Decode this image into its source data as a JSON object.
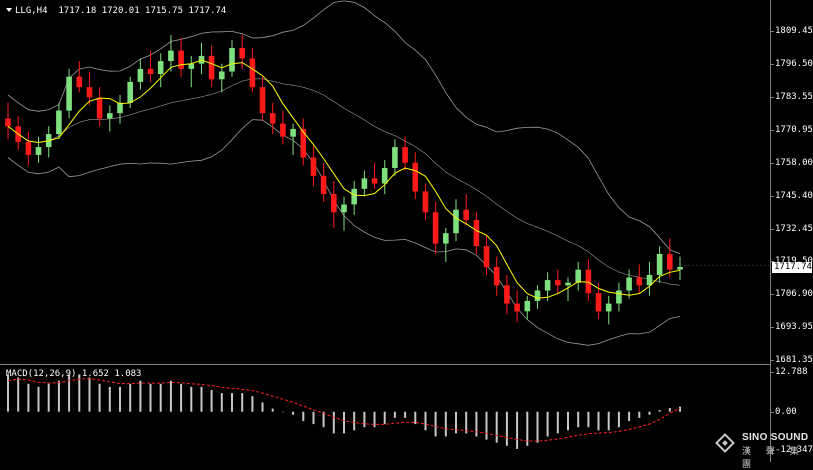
{
  "header": {
    "symbol_timeframe": "LLG,H4",
    "ohlc": "1717.18 1720.01 1715.75 1717.74"
  },
  "macd": {
    "label": "MACD(12,26,9) 1.652 1.083"
  },
  "price_axis": {
    "ticks": [
      "1809.45",
      "1796.50",
      "1783.55",
      "1770.95",
      "1758.00",
      "1745.40",
      "1732.45",
      "1706.90",
      "1693.95",
      "1681.35"
    ],
    "hidden_tick": "1719.50",
    "current_price": "1717.74"
  },
  "macd_axis": {
    "ticks": [
      "12.788",
      "0.00",
      "-12.347"
    ]
  },
  "watermark": {
    "brand": "SINO SOUND",
    "chinese": "漢 聲 集 團"
  },
  "colors": {
    "background": "#000000",
    "bull_candle": "#7fe07f",
    "bear_candle": "#ff1a1a",
    "ma_line": "#ffff00",
    "bollinger": "#9a9a9a",
    "macd_hist": "#c8c8c8",
    "signal": "#ff2020"
  },
  "chart_data": {
    "type": "candlestick",
    "series_name": "LLG,H4",
    "ylim": [
      1681.35,
      1815
    ],
    "candles_ohlc": [
      [
        1774,
        1780,
        1766,
        1771
      ],
      [
        1771,
        1775,
        1762,
        1765
      ],
      [
        1765,
        1769,
        1756,
        1760
      ],
      [
        1760,
        1767,
        1757,
        1763
      ],
      [
        1763,
        1771,
        1759,
        1768
      ],
      [
        1768,
        1780,
        1766,
        1777
      ],
      [
        1777,
        1793,
        1774,
        1790
      ],
      [
        1790,
        1796,
        1784,
        1786
      ],
      [
        1786,
        1792,
        1779,
        1782
      ],
      [
        1782,
        1786,
        1771,
        1774
      ],
      [
        1774,
        1779,
        1769,
        1776
      ],
      [
        1776,
        1783,
        1772,
        1780
      ],
      [
        1780,
        1790,
        1778,
        1788
      ],
      [
        1788,
        1797,
        1785,
        1793
      ],
      [
        1793,
        1800,
        1788,
        1791
      ],
      [
        1791,
        1799,
        1786,
        1796
      ],
      [
        1796,
        1806,
        1792,
        1800
      ],
      [
        1800,
        1805,
        1790,
        1793
      ],
      [
        1793,
        1798,
        1786,
        1795
      ],
      [
        1795,
        1803,
        1791,
        1798
      ],
      [
        1798,
        1802,
        1786,
        1789
      ],
      [
        1789,
        1795,
        1784,
        1792
      ],
      [
        1792,
        1804,
        1790,
        1801
      ],
      [
        1801,
        1806,
        1793,
        1797
      ],
      [
        1797,
        1801,
        1784,
        1786
      ],
      [
        1786,
        1790,
        1773,
        1776
      ],
      [
        1776,
        1780,
        1768,
        1772
      ],
      [
        1772,
        1777,
        1764,
        1767
      ],
      [
        1767,
        1772,
        1760,
        1770
      ],
      [
        1770,
        1774,
        1756,
        1759
      ],
      [
        1759,
        1764,
        1748,
        1752
      ],
      [
        1752,
        1757,
        1742,
        1745
      ],
      [
        1745,
        1750,
        1732,
        1738
      ],
      [
        1738,
        1744,
        1731,
        1741
      ],
      [
        1741,
        1750,
        1737,
        1747
      ],
      [
        1747,
        1754,
        1744,
        1751
      ],
      [
        1751,
        1757,
        1747,
        1749
      ],
      [
        1749,
        1758,
        1745,
        1755
      ],
      [
        1755,
        1766,
        1752,
        1763
      ],
      [
        1763,
        1767,
        1754,
        1757
      ],
      [
        1757,
        1761,
        1743,
        1746
      ],
      [
        1746,
        1749,
        1735,
        1738
      ],
      [
        1738,
        1742,
        1722,
        1726
      ],
      [
        1726,
        1732,
        1719,
        1730
      ],
      [
        1730,
        1743,
        1727,
        1739
      ],
      [
        1739,
        1745,
        1733,
        1735
      ],
      [
        1735,
        1738,
        1722,
        1725
      ],
      [
        1725,
        1729,
        1714,
        1717
      ],
      [
        1717,
        1721,
        1706,
        1710
      ],
      [
        1710,
        1714,
        1699,
        1703
      ],
      [
        1703,
        1708,
        1696,
        1700
      ],
      [
        1700,
        1706,
        1697,
        1704
      ],
      [
        1704,
        1710,
        1701,
        1708
      ],
      [
        1708,
        1715,
        1704,
        1712
      ],
      [
        1712,
        1716,
        1707,
        1710
      ],
      [
        1710,
        1713,
        1704,
        1711
      ],
      [
        1711,
        1719,
        1708,
        1716
      ],
      [
        1716,
        1720,
        1704,
        1707
      ],
      [
        1707,
        1711,
        1697,
        1700
      ],
      [
        1700,
        1706,
        1695,
        1703
      ],
      [
        1703,
        1711,
        1700,
        1708
      ],
      [
        1708,
        1716,
        1705,
        1713
      ],
      [
        1713,
        1718,
        1707,
        1710
      ],
      [
        1710,
        1719,
        1706,
        1714
      ],
      [
        1714,
        1725,
        1711,
        1722
      ],
      [
        1722,
        1728,
        1713,
        1716
      ],
      [
        1716,
        1721,
        1712,
        1717
      ]
    ],
    "macd_histogram": [
      12,
      11,
      9,
      8,
      9,
      10,
      12,
      12,
      11,
      9,
      8,
      8,
      9,
      10,
      9,
      9,
      10,
      9,
      8,
      8,
      7,
      6,
      6,
      6,
      5,
      3,
      1,
      0,
      -1,
      -3,
      -4,
      -5,
      -7,
      -7,
      -6,
      -5,
      -5,
      -4,
      -2,
      -2,
      -4,
      -6,
      -8,
      -8,
      -7,
      -7,
      -8,
      -9,
      -10,
      -11,
      -12,
      -11,
      -10,
      -8,
      -7,
      -6,
      -5,
      -5,
      -6,
      -6,
      -5,
      -3,
      -2,
      -1,
      0.5,
      1.2,
      1.652
    ],
    "macd_signal": [
      10,
      10.5,
      10.2,
      9.5,
      9.2,
      9.4,
      10,
      10.5,
      10.6,
      10.2,
      9.6,
      9.1,
      9,
      9.2,
      9.2,
      9.2,
      9.4,
      9.3,
      9,
      8.8,
      8.4,
      7.9,
      7.5,
      7.2,
      6.8,
      6,
      5,
      4,
      3,
      1.8,
      0.6,
      -0.5,
      -1.8,
      -2.9,
      -3.5,
      -3.9,
      -4.1,
      -4.1,
      -3.7,
      -3.4,
      -3.5,
      -4,
      -4.8,
      -5.5,
      -5.8,
      -6.1,
      -6.5,
      -7,
      -7.6,
      -8.3,
      -9,
      -9.4,
      -9.5,
      -9.2,
      -8.8,
      -8.2,
      -7.6,
      -7.1,
      -6.9,
      -6.7,
      -6.4,
      -5.7,
      -4.9,
      -4,
      -2.5,
      -0.5,
      1.083
    ]
  }
}
